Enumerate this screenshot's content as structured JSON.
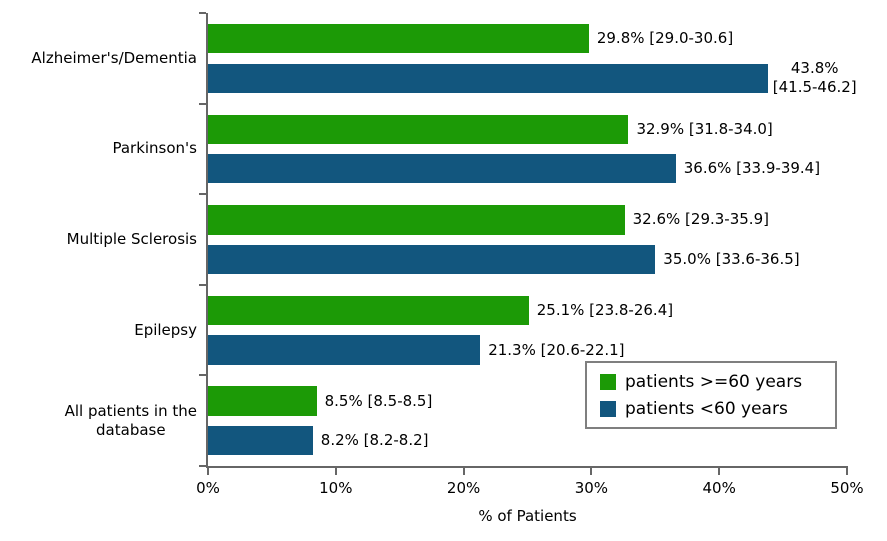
{
  "chart_data": {
    "type": "bar",
    "orientation": "horizontal",
    "title": "",
    "xlabel": "% of Patients",
    "ylabel": "",
    "xlim": [
      0,
      50
    ],
    "x_ticks": [
      "0%",
      "10%",
      "20%",
      "30%",
      "40%",
      "50%"
    ],
    "grid": false,
    "legend_position": "inside-bottom-right",
    "categories": [
      "Alzheimer's/Dementia",
      "Parkinson's",
      "Multiple Sclerosis",
      "Epilepsy",
      "All patients in the\ndatabase"
    ],
    "series": [
      {
        "name": "patients >=60 years",
        "color": "#1c9a06",
        "values": [
          29.8,
          32.9,
          32.6,
          25.1,
          8.5
        ],
        "labels": [
          "29.8% [29.0-30.6]",
          "32.9% [31.8-34.0]",
          "32.6% [29.3-35.9]",
          "25.1% [23.8-26.4]",
          "8.5% [8.5-8.5]"
        ]
      },
      {
        "name": "patients <60 years",
        "color": "#12567e",
        "values": [
          43.8,
          36.6,
          35.0,
          21.3,
          8.2
        ],
        "labels": [
          "43.8%\n[41.5-46.2]",
          "36.6% [33.9-39.4]",
          "35.0% [33.6-36.5]",
          "21.3% [20.6-22.1]",
          "8.2% [8.2-8.2]"
        ]
      }
    ]
  }
}
